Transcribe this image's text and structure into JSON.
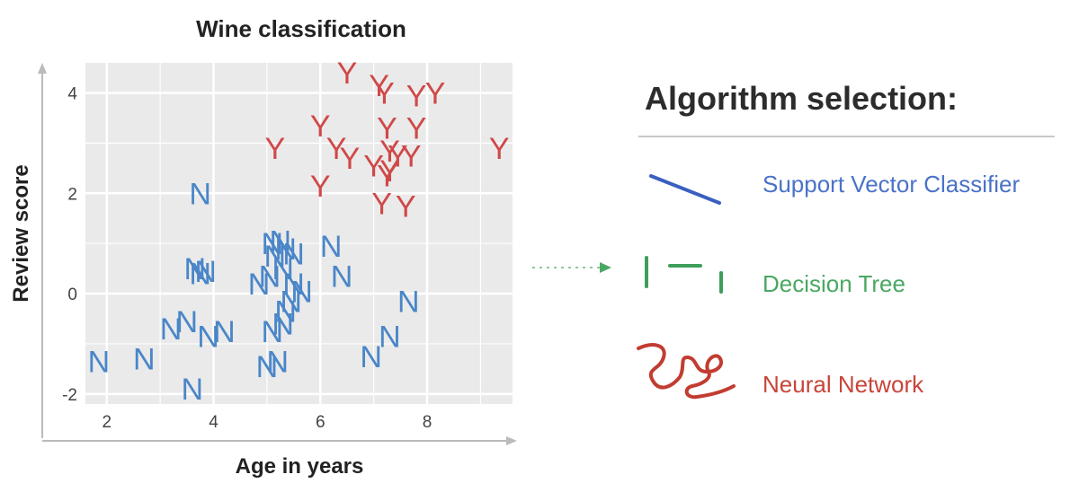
{
  "chart_data": {
    "type": "scatter",
    "title": "Wine classification",
    "xlabel": "Age in years",
    "ylabel": "Review score",
    "xlim": [
      1.6,
      9.6
    ],
    "ylim": [
      -2.2,
      4.6
    ],
    "xticks": [
      2,
      4,
      6,
      8
    ],
    "yticks": [
      -2,
      0,
      2,
      4
    ],
    "grid": true,
    "series": [
      {
        "marker": "N",
        "color": "#4a86c8",
        "points": [
          [
            1.85,
            -1.35
          ],
          [
            2.7,
            -1.3
          ],
          [
            3.2,
            -0.7
          ],
          [
            3.5,
            -0.55
          ],
          [
            3.6,
            -1.9
          ],
          [
            3.65,
            0.5
          ],
          [
            3.85,
            0.45
          ],
          [
            3.75,
            0.4
          ],
          [
            3.9,
            -0.85
          ],
          [
            4.2,
            -0.75
          ],
          [
            3.75,
            2.0
          ],
          [
            4.85,
            0.2
          ],
          [
            5.05,
            0.35
          ],
          [
            5.1,
            1.0
          ],
          [
            5.25,
            1.05
          ],
          [
            5.35,
            0.9
          ],
          [
            5.15,
            0.75
          ],
          [
            5.5,
            0.8
          ],
          [
            5.3,
            0.5
          ],
          [
            5.5,
            0.2
          ],
          [
            5.45,
            -0.15
          ],
          [
            5.65,
            0.05
          ],
          [
            5.35,
            -0.35
          ],
          [
            5.1,
            -0.75
          ],
          [
            5.3,
            -0.6
          ],
          [
            5.0,
            -1.45
          ],
          [
            5.2,
            -1.35
          ],
          [
            6.2,
            0.95
          ],
          [
            6.4,
            0.35
          ],
          [
            6.95,
            -1.25
          ],
          [
            7.3,
            -0.85
          ],
          [
            7.65,
            -0.15
          ]
        ]
      },
      {
        "marker": "Y",
        "color": "#d04848",
        "points": [
          [
            6.5,
            4.4
          ],
          [
            7.1,
            4.15
          ],
          [
            7.2,
            4.0
          ],
          [
            7.8,
            3.95
          ],
          [
            8.15,
            4.0
          ],
          [
            6.0,
            3.35
          ],
          [
            7.25,
            3.3
          ],
          [
            7.8,
            3.3
          ],
          [
            5.15,
            2.9
          ],
          [
            6.3,
            2.9
          ],
          [
            6.55,
            2.7
          ],
          [
            7.0,
            2.55
          ],
          [
            7.3,
            2.85
          ],
          [
            7.45,
            2.75
          ],
          [
            7.7,
            2.75
          ],
          [
            7.25,
            2.35
          ],
          [
            6.0,
            2.15
          ],
          [
            7.15,
            1.8
          ],
          [
            7.6,
            1.75
          ],
          [
            9.35,
            2.9
          ],
          [
            7.3,
            2.45
          ]
        ]
      }
    ]
  },
  "panel": {
    "title": "Algorithm selection:",
    "algorithms": [
      {
        "label": "Support Vector Classifier",
        "color": "#4a72c8",
        "icon": "straight-line-icon"
      },
      {
        "label": "Decision Tree",
        "color": "#4aa862",
        "icon": "step-dashed-line-icon"
      },
      {
        "label": "Neural Network",
        "color": "#c8453a",
        "icon": "squiggle-line-icon"
      }
    ]
  }
}
